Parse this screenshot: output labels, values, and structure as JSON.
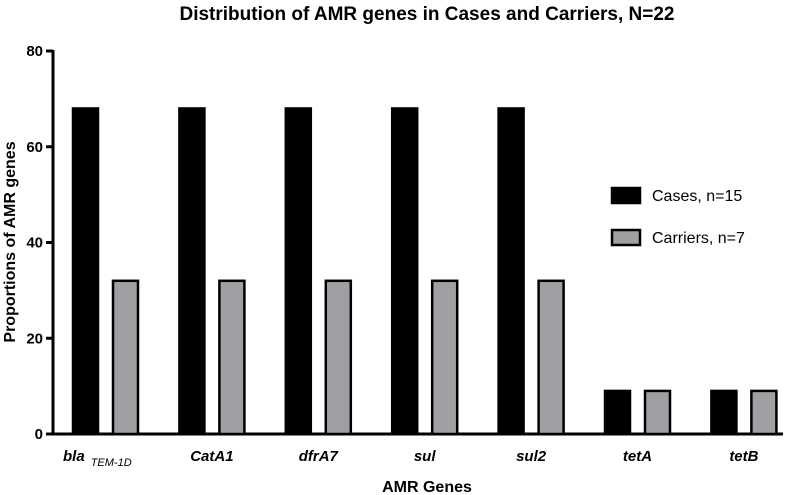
{
  "chart_data": {
    "type": "bar",
    "title": "Distribution of AMR genes in Cases and Carriers, N=22",
    "xlabel": "AMR Genes",
    "ylabel": "Proportions  of AMR genes",
    "ylim": [
      0,
      80
    ],
    "yticks": [
      0,
      20,
      40,
      60,
      80
    ],
    "grid": false,
    "legend_position": "right",
    "categories": [
      {
        "label": "bla",
        "sub": "TEM-1D"
      },
      {
        "label": "CatA1",
        "sub": ""
      },
      {
        "label": "dfrA7",
        "sub": ""
      },
      {
        "label": "sul",
        "sub": ""
      },
      {
        "label": "sul2",
        "sub": ""
      },
      {
        "label": "tetA",
        "sub": ""
      },
      {
        "label": "tetB",
        "sub": ""
      }
    ],
    "series": [
      {
        "name": "Cases, n=15",
        "color": "#000000",
        "values": [
          68,
          68,
          68,
          68,
          68,
          9,
          9
        ]
      },
      {
        "name": "Carriers, n=7",
        "color": "#a0a0a4",
        "values": [
          32,
          32,
          32,
          32,
          32,
          9,
          9
        ]
      }
    ]
  }
}
